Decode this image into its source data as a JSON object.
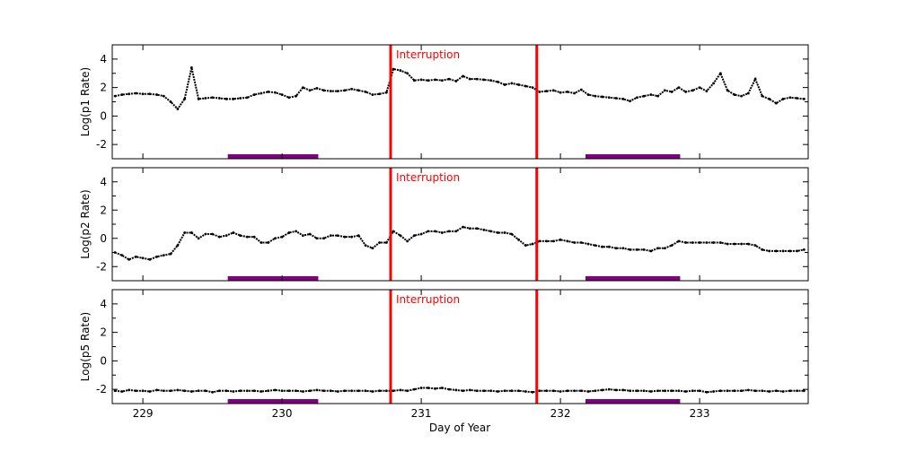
{
  "chart_data": [
    {
      "type": "scatter",
      "ylabel": "Log(p1 Rate)",
      "xlabel": "",
      "xlim": [
        228.78,
        233.78
      ],
      "ylim": [
        -3,
        5
      ],
      "yticks": [
        4,
        2,
        0,
        -2
      ],
      "annotation": "Interruption",
      "interruptions": [
        230.78,
        231.83
      ],
      "bars": [
        [
          229.61,
          230.26
        ],
        [
          232.18,
          232.86
        ]
      ],
      "x_start": 228.8,
      "x_step": 0.05,
      "values": [
        1.4,
        1.5,
        1.55,
        1.6,
        1.55,
        1.55,
        1.5,
        1.4,
        1.0,
        0.5,
        1.2,
        3.4,
        1.2,
        1.25,
        1.3,
        1.25,
        1.2,
        1.2,
        1.25,
        1.3,
        1.5,
        1.6,
        1.7,
        1.65,
        1.5,
        1.3,
        1.4,
        2.0,
        1.8,
        1.95,
        1.8,
        1.75,
        1.75,
        1.8,
        1.9,
        1.8,
        1.7,
        1.5,
        1.55,
        1.65,
        3.3,
        3.2,
        3.0,
        2.5,
        2.55,
        2.5,
        2.55,
        2.5,
        2.6,
        2.45,
        2.8,
        2.6,
        2.6,
        2.55,
        2.5,
        2.4,
        2.2,
        2.3,
        2.2,
        2.1,
        2.0,
        1.7,
        1.75,
        1.8,
        1.65,
        1.7,
        1.6,
        1.85,
        1.5,
        1.4,
        1.35,
        1.3,
        1.25,
        1.2,
        1.05,
        1.3,
        1.4,
        1.5,
        1.4,
        1.8,
        1.7,
        2.0,
        1.7,
        1.8,
        2.0,
        1.75,
        2.3,
        3.0,
        1.8,
        1.5,
        1.4,
        1.6,
        2.6,
        1.4,
        1.2,
        0.9,
        1.2,
        1.3,
        1.25,
        1.2
      ]
    },
    {
      "type": "scatter",
      "ylabel": "Log(p2 Rate)",
      "xlabel": "",
      "xlim": [
        228.78,
        233.78
      ],
      "ylim": [
        -3,
        5
      ],
      "yticks": [
        4,
        2,
        0,
        -2
      ],
      "annotation": "Interruption",
      "interruptions": [
        230.78,
        231.83
      ],
      "bars": [
        [
          229.61,
          230.26
        ],
        [
          232.18,
          232.86
        ]
      ],
      "x_start": 228.8,
      "x_step": 0.05,
      "values": [
        -1.0,
        -1.2,
        -1.5,
        -1.3,
        -1.4,
        -1.5,
        -1.3,
        -1.2,
        -1.1,
        -0.5,
        0.4,
        0.4,
        0.0,
        0.3,
        0.3,
        0.1,
        0.2,
        0.4,
        0.2,
        0.1,
        0.1,
        -0.3,
        -0.3,
        0.0,
        0.1,
        0.4,
        0.5,
        0.2,
        0.3,
        0.0,
        0.0,
        0.2,
        0.2,
        0.1,
        0.1,
        0.2,
        -0.5,
        -0.7,
        -0.3,
        -0.3,
        0.5,
        0.2,
        -0.2,
        0.2,
        0.3,
        0.5,
        0.5,
        0.4,
        0.5,
        0.5,
        0.8,
        0.7,
        0.7,
        0.6,
        0.5,
        0.4,
        0.4,
        0.3,
        -0.1,
        -0.5,
        -0.4,
        -0.2,
        -0.2,
        -0.2,
        -0.1,
        -0.2,
        -0.3,
        -0.3,
        -0.4,
        -0.5,
        -0.6,
        -0.6,
        -0.7,
        -0.7,
        -0.8,
        -0.8,
        -0.8,
        -0.9,
        -0.7,
        -0.7,
        -0.5,
        -0.2,
        -0.3,
        -0.3,
        -0.3,
        -0.3,
        -0.3,
        -0.3,
        -0.4,
        -0.4,
        -0.4,
        -0.4,
        -0.5,
        -0.8,
        -0.9,
        -0.9,
        -0.9,
        -0.9,
        -0.9,
        -0.8
      ]
    },
    {
      "type": "scatter",
      "ylabel": "Log(p5 Rate)",
      "xlabel": "Day of Year",
      "xlim": [
        228.78,
        233.78
      ],
      "ylim": [
        -3,
        5
      ],
      "yticks": [
        4,
        2,
        0,
        -2
      ],
      "xticks": [
        229,
        230,
        231,
        232,
        233
      ],
      "xticklabels": [
        "229",
        "230",
        "231",
        "232",
        "233"
      ],
      "annotation": "Interruption",
      "interruptions": [
        230.78,
        231.83
      ],
      "bars": [
        [
          229.61,
          230.26
        ],
        [
          232.18,
          232.86
        ]
      ],
      "x_start": 228.8,
      "x_step": 0.05,
      "values": [
        -2.1,
        -2.15,
        -2.05,
        -2.1,
        -2.1,
        -2.15,
        -2.05,
        -2.1,
        -2.1,
        -2.05,
        -2.1,
        -2.15,
        -2.1,
        -2.1,
        -2.2,
        -2.1,
        -2.1,
        -2.15,
        -2.1,
        -2.1,
        -2.1,
        -2.15,
        -2.1,
        -2.05,
        -2.1,
        -2.1,
        -2.1,
        -2.15,
        -2.1,
        -2.05,
        -2.1,
        -2.1,
        -2.15,
        -2.1,
        -2.1,
        -2.1,
        -2.1,
        -2.15,
        -2.1,
        -2.1,
        -2.1,
        -2.05,
        -2.1,
        -2.0,
        -1.9,
        -1.9,
        -1.95,
        -1.9,
        -2.0,
        -2.05,
        -2.1,
        -2.05,
        -2.1,
        -2.1,
        -2.1,
        -2.15,
        -2.1,
        -2.1,
        -2.1,
        -2.15,
        -2.2,
        -2.1,
        -2.1,
        -2.1,
        -2.15,
        -2.1,
        -2.1,
        -2.1,
        -2.15,
        -2.1,
        -2.05,
        -2.0,
        -2.05,
        -2.05,
        -2.1,
        -2.1,
        -2.1,
        -2.15,
        -2.1,
        -2.1,
        -2.1,
        -2.1,
        -2.15,
        -2.1,
        -2.1,
        -2.2,
        -2.15,
        -2.1,
        -2.1,
        -2.1,
        -2.1,
        -2.05,
        -2.1,
        -2.1,
        -2.15,
        -2.1,
        -2.15,
        -2.1,
        -2.1,
        -2.1
      ]
    }
  ],
  "colors": {
    "points": "#000000",
    "interruption": "#ff0000",
    "bars": "#800080"
  }
}
